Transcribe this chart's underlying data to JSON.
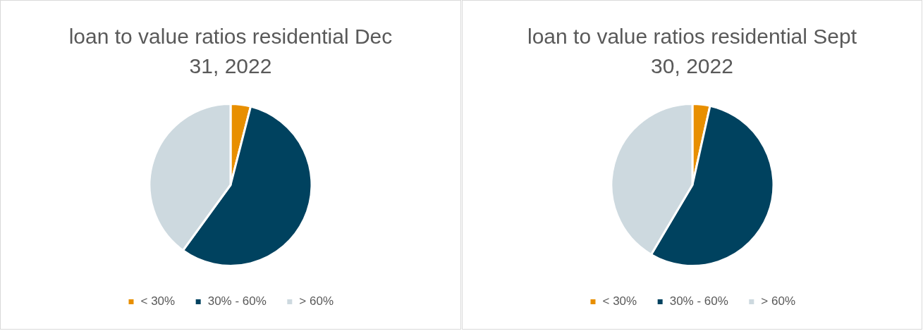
{
  "chart_data": [
    {
      "type": "pie",
      "title": "loan to value ratios residential Dec 31, 2022",
      "categories": [
        "< 30%",
        "30% - 60%",
        "> 60%"
      ],
      "values": [
        4,
        56,
        40
      ],
      "colors": [
        "#e88f00",
        "#00425f",
        "#cdd9df"
      ],
      "legend": "bottom"
    },
    {
      "type": "pie",
      "title": "loan to value ratios residential Sept 30, 2022",
      "categories": [
        "< 30%",
        "30% - 60%",
        "> 60%"
      ],
      "values": [
        3.5,
        55,
        41.5
      ],
      "colors": [
        "#e88f00",
        "#00425f",
        "#cdd9df"
      ],
      "legend": "bottom"
    }
  ]
}
